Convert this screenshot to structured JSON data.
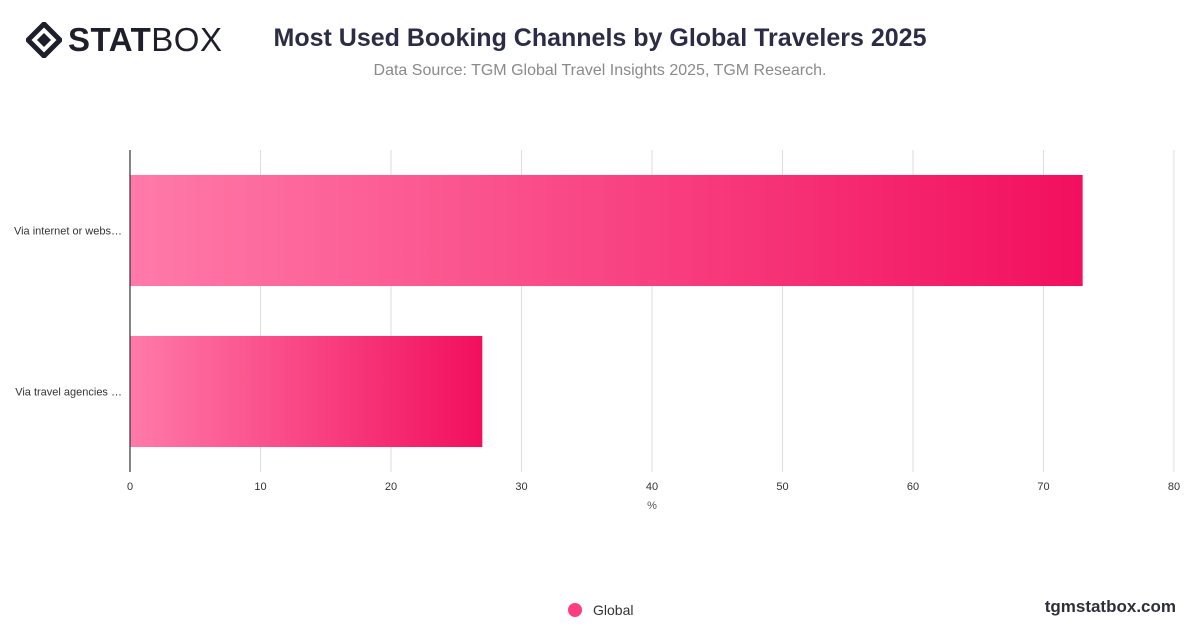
{
  "brand": {
    "logo_bold": "STAT",
    "logo_light": "BOX",
    "footer": "tgmstatbox.com"
  },
  "header": {
    "title": "Most Used Booking Channels by Global Travelers 2025",
    "subtitle": "Data Source: TGM Global Travel Insights 2025, TGM Research."
  },
  "legend": {
    "label": "Global"
  },
  "colors": {
    "bar_start": "#ff7aa8",
    "bar_end": "#f20f5e",
    "grid": "#dddddd",
    "axis": "#333333"
  },
  "chart_data": {
    "type": "bar",
    "orientation": "horizontal",
    "categories": [
      "Via internet or webs…",
      "Via travel agencies …"
    ],
    "series": [
      {
        "name": "Global",
        "values": [
          73,
          27
        ]
      }
    ],
    "xlabel": "%",
    "xlim": [
      0,
      80
    ],
    "xticks": [
      0,
      10,
      20,
      30,
      40,
      50,
      60,
      70,
      80
    ],
    "grid": true,
    "legend_position": "bottom"
  }
}
